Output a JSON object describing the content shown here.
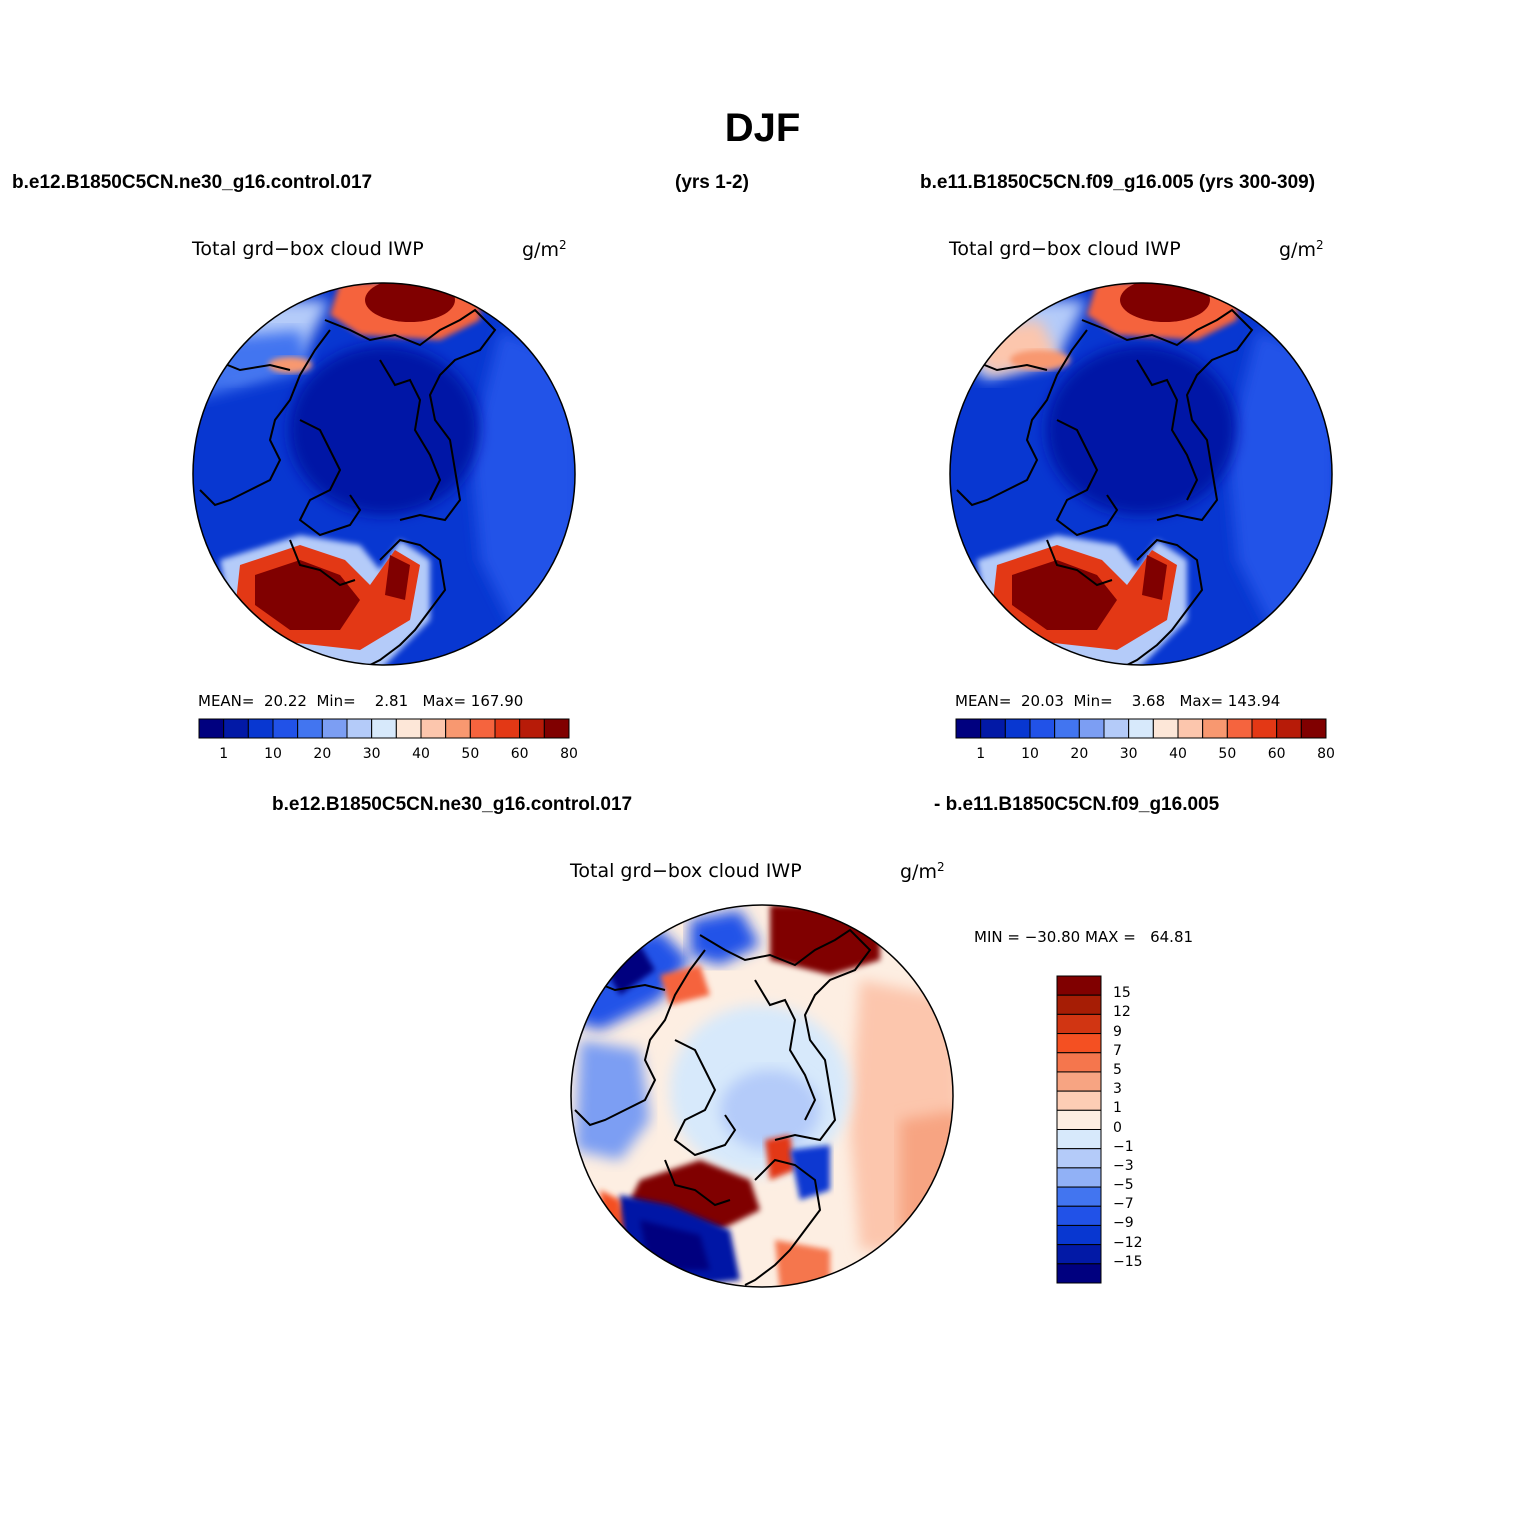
{
  "title": "DJF",
  "header": {
    "left_case": "b.e12.B1850C5CN.ne30_g16.control.017",
    "left_years": "(yrs 1-2)",
    "right_case": "b.e11.B1850C5CN.f09_g16.005 (yrs 300-309)"
  },
  "panels": [
    {
      "title": "Total grd−box cloud IWP",
      "units": "g/m",
      "units_exp": "2",
      "stats": "MEAN=  20.22  Min=    2.81   Max= 167.90"
    },
    {
      "title": "Total grd−box cloud IWP",
      "units": "g/m",
      "units_exp": "2",
      "stats": "MEAN=  20.03  Min=    3.68   Max= 143.94"
    }
  ],
  "diff_header": {
    "left": "b.e12.B1850C5CN.ne30_g16.control.017",
    "right": "- b.e11.B1850C5CN.f09_g16.005"
  },
  "diff_panel": {
    "title": "Total grd−box cloud IWP",
    "units": "g/m",
    "units_exp": "2",
    "minmax": "MIN = −30.80 MAX =   64.81"
  },
  "colorbar_main": {
    "colors": [
      "#00007f",
      "#0219a6",
      "#0837d1",
      "#2152e8",
      "#4275f0",
      "#7c9ef3",
      "#b4cbf9",
      "#d7e9fb",
      "#fde7d8",
      "#fcc6ad",
      "#f89870",
      "#f5643e",
      "#e33815",
      "#b71b08",
      "#800000"
    ],
    "labels": [
      "1",
      "10",
      "20",
      "30",
      "40",
      "50",
      "60",
      "80"
    ]
  },
  "colorbar_diff": {
    "colors": [
      "#800000",
      "#a61d05",
      "#d13512",
      "#f45022",
      "#f5764d",
      "#f7a482",
      "#fdcdb5",
      "#fdeee2",
      "#d7e9fb",
      "#b4cbf9",
      "#91b1f6",
      "#4275f0",
      "#2152e8",
      "#0837d1",
      "#0219a6",
      "#00007f"
    ],
    "labels": [
      "15",
      "12",
      "9",
      "7",
      "5",
      "3",
      "1",
      "0",
      "−1",
      "−3",
      "−5",
      "−7",
      "−9",
      "−12",
      "−15"
    ]
  }
}
